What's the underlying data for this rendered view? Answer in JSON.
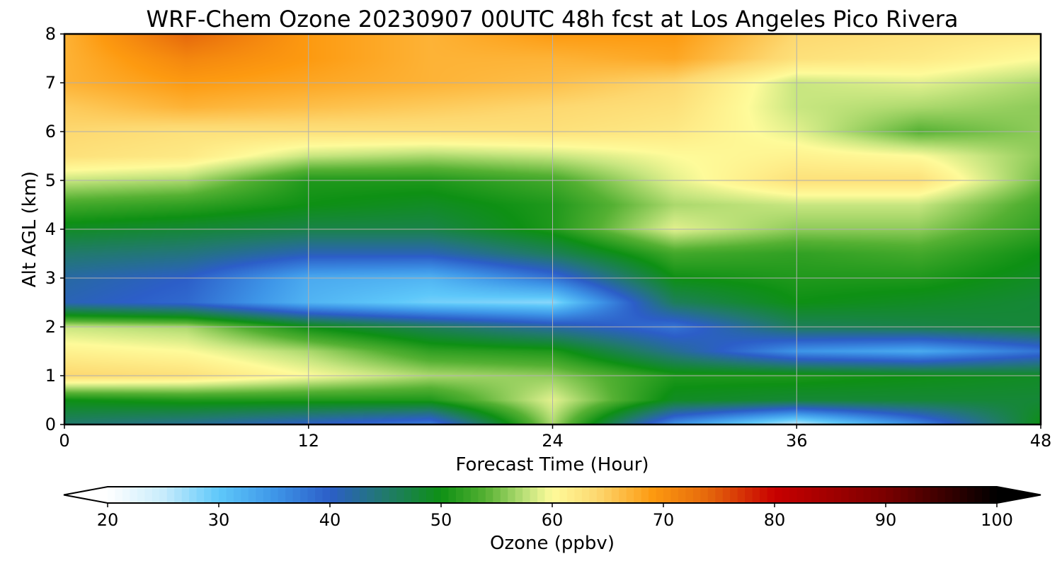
{
  "chart_data": {
    "type": "heatmap",
    "title": "WRF-Chem Ozone  20230907 00UTC 48h fcst at Los Angeles Pico Rivera",
    "xlabel": "Forecast Time (Hour)",
    "ylabel": "Alt AGL (km)",
    "xlim": [
      0,
      48
    ],
    "ylim": [
      0,
      8
    ],
    "xticks": [
      0,
      12,
      24,
      36,
      48
    ],
    "yticks": [
      0,
      1,
      2,
      3,
      4,
      5,
      6,
      7,
      8
    ],
    "grid": true,
    "x": [
      0,
      6,
      12,
      18,
      24,
      30,
      36,
      42,
      48
    ],
    "y": [
      0,
      0.5,
      1,
      1.5,
      2,
      2.5,
      3,
      3.5,
      4,
      4.5,
      5,
      5.5,
      6,
      6.5,
      7,
      7.5,
      8
    ],
    "values": [
      [
        45,
        43,
        40,
        37,
        57,
        35,
        25,
        36,
        50
      ],
      [
        50,
        51,
        51,
        51,
        59,
        49,
        48,
        48,
        48
      ],
      [
        64,
        63,
        60,
        57,
        56,
        51,
        51,
        50,
        49
      ],
      [
        61,
        60,
        57,
        52,
        51,
        43,
        35,
        33,
        38
      ],
      [
        58,
        57,
        50,
        46,
        42,
        38,
        46,
        47,
        48
      ],
      [
        41,
        39,
        32,
        29,
        28,
        46,
        50,
        49,
        48
      ],
      [
        42,
        40,
        33,
        32,
        38,
        50,
        51,
        51,
        49
      ],
      [
        45,
        44,
        41,
        41,
        46,
        53,
        52,
        53,
        50
      ],
      [
        49,
        48,
        47,
        47,
        51,
        59,
        56,
        56,
        52
      ],
      [
        53,
        52,
        50,
        49,
        51,
        57,
        58,
        58,
        53
      ],
      [
        58,
        57,
        51,
        51,
        53,
        59,
        63,
        63,
        55
      ],
      [
        63,
        62,
        58,
        57,
        58,
        60,
        61,
        60,
        56
      ],
      [
        64,
        63,
        63,
        63,
        63,
        62,
        59,
        54,
        56
      ],
      [
        65,
        67,
        66,
        65,
        64,
        63,
        58,
        57,
        56
      ],
      [
        67,
        69,
        68,
        67,
        66,
        64,
        58,
        59,
        57
      ],
      [
        67,
        71,
        69,
        67,
        67,
        68,
        63,
        62,
        60
      ],
      [
        67,
        74,
        69,
        67,
        69,
        69,
        64,
        63,
        62
      ]
    ],
    "colorbar": {
      "label": "Ozone  (ppbv)",
      "min": 20,
      "max": 100,
      "ticks": [
        20,
        30,
        40,
        50,
        60,
        70,
        80,
        90,
        100
      ],
      "extend": "both",
      "stops": [
        {
          "v": 20,
          "c": "#ffffff"
        },
        {
          "v": 25,
          "c": "#c8ecfc"
        },
        {
          "v": 30,
          "c": "#5ec8fa"
        },
        {
          "v": 35,
          "c": "#3e96e8"
        },
        {
          "v": 40,
          "c": "#2c5ec8"
        },
        {
          "v": 45,
          "c": "#217a6c"
        },
        {
          "v": 50,
          "c": "#0e9014"
        },
        {
          "v": 54,
          "c": "#55b133"
        },
        {
          "v": 58,
          "c": "#c8e680"
        },
        {
          "v": 60,
          "c": "#fefb9a"
        },
        {
          "v": 64,
          "c": "#fdd870"
        },
        {
          "v": 69,
          "c": "#fd9a10"
        },
        {
          "v": 74,
          "c": "#e5680c"
        },
        {
          "v": 80,
          "c": "#c80000"
        },
        {
          "v": 90,
          "c": "#7a0000"
        },
        {
          "v": 100,
          "c": "#000000"
        }
      ]
    }
  }
}
